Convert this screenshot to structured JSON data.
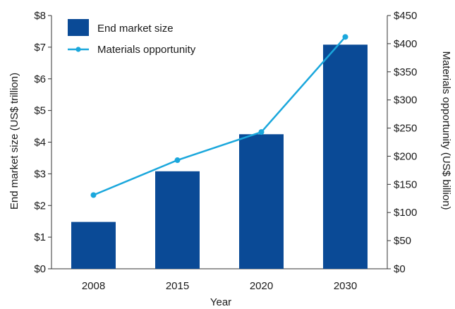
{
  "chart_data": {
    "type": "bar+line",
    "categories": [
      "2008",
      "2015",
      "2020",
      "2030"
    ],
    "xlabel": "Year",
    "ylabel_left": "End market size (US$ trillion)",
    "ylabel_right": "Materials opportunity (US$ billion)",
    "y_left": {
      "min": 0,
      "max": 8,
      "ticks": [
        "$0",
        "$1",
        "$2",
        "$3",
        "$4",
        "$5",
        "$6",
        "$7",
        "$8"
      ]
    },
    "y_right": {
      "min": 0,
      "max": 450,
      "ticks": [
        "$0",
        "$50",
        "$100",
        "$150",
        "$200",
        "$250",
        "$300",
        "$350",
        "$400",
        "$450"
      ]
    },
    "series": [
      {
        "name": "End market size",
        "kind": "bar",
        "axis": "left",
        "values": [
          1.48,
          3.08,
          4.25,
          7.08
        ]
      },
      {
        "name": "Materials opportunity",
        "kind": "line",
        "axis": "right",
        "values": [
          131,
          193,
          243,
          412
        ]
      }
    ],
    "legend_position": "top-left",
    "grid": false,
    "colors": {
      "bar": "#0a4a96",
      "line": "#1aa7dc",
      "axis": "#333333",
      "text": "#1a1a1a"
    }
  }
}
